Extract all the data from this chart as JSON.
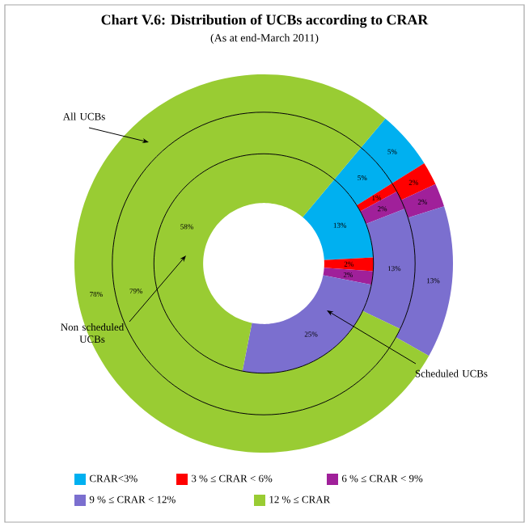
{
  "chart_data": {
    "type": "donut",
    "title": "Chart V.6: Distribution of UCBs according to CRAR",
    "subtitle": "(As at end-March 2011)",
    "categories": [
      "CRAR<3%",
      "3 % ≤ CRAR < 6%",
      "6 % ≤ CRAR < 9%",
      "9 % ≤ CRAR < 12%",
      "12 % ≤ CRAR"
    ],
    "colors": [
      "#00b0f0",
      "#ff0000",
      "#a0209a",
      "#7b6fcf",
      "#99cc33"
    ],
    "series": [
      {
        "name": "All UCBs",
        "values": [
          5,
          2,
          2,
          13,
          78
        ],
        "value_labels": [
          "5%",
          "2%",
          "2%",
          "13%",
          "78%"
        ]
      },
      {
        "name": "Non scheduled UCBs",
        "values": [
          5,
          1,
          2,
          13,
          79
        ],
        "value_labels": [
          "5%",
          "1%",
          "2%",
          "13%",
          "79%"
        ]
      },
      {
        "name": "Scheduled UCBs",
        "values": [
          13,
          2,
          2,
          25,
          58
        ],
        "value_labels": [
          "13%",
          "2%",
          "2%",
          "25%",
          "58%"
        ]
      }
    ],
    "legend": "bottom"
  }
}
